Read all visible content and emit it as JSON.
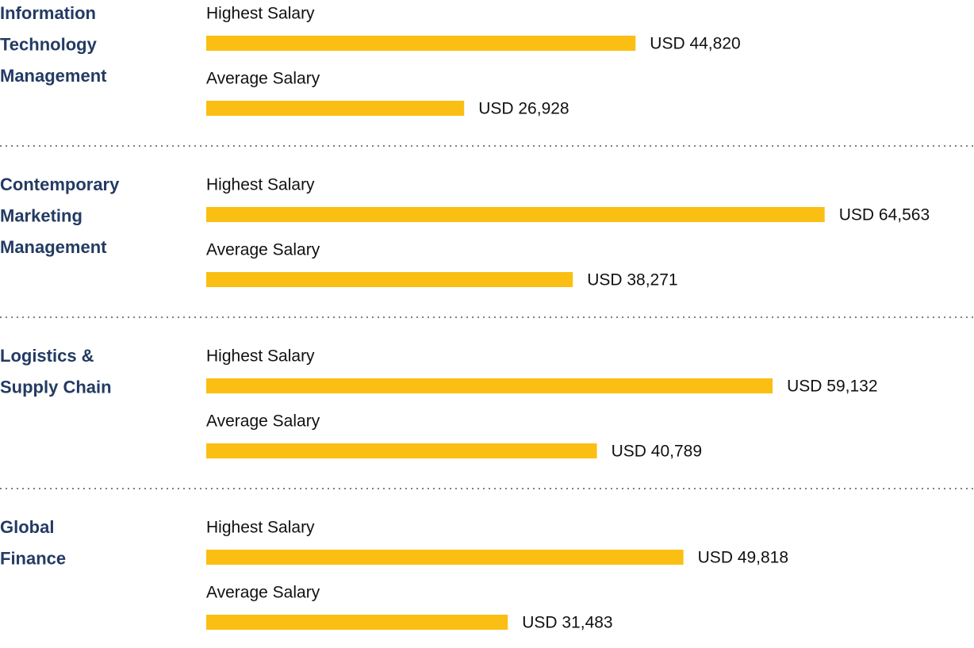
{
  "chart_data": {
    "type": "bar",
    "orientation": "horizontal",
    "categories": [
      [
        "Information",
        "Technology",
        "Management"
      ],
      [
        "Contemporary",
        "Marketing",
        "Management"
      ],
      [
        "Logistics &",
        "Supply Chain"
      ],
      [
        "Global",
        "Finance"
      ]
    ],
    "series": [
      {
        "name": "Highest Salary",
        "color": "#fbbf14",
        "values": [
          44820,
          64563,
          59132,
          49818
        ],
        "value_labels": [
          "USD 44,820",
          "USD 64,563",
          "USD 59,132",
          "USD 49,818"
        ]
      },
      {
        "name": "Average Salary",
        "color": "#fbbf14",
        "values": [
          26928,
          38271,
          40789,
          31483
        ],
        "value_labels": [
          "USD 26,928",
          "USD 38,271",
          "USD 40,789",
          "USD 31,483"
        ]
      }
    ],
    "xlim": [
      0,
      65000
    ]
  }
}
